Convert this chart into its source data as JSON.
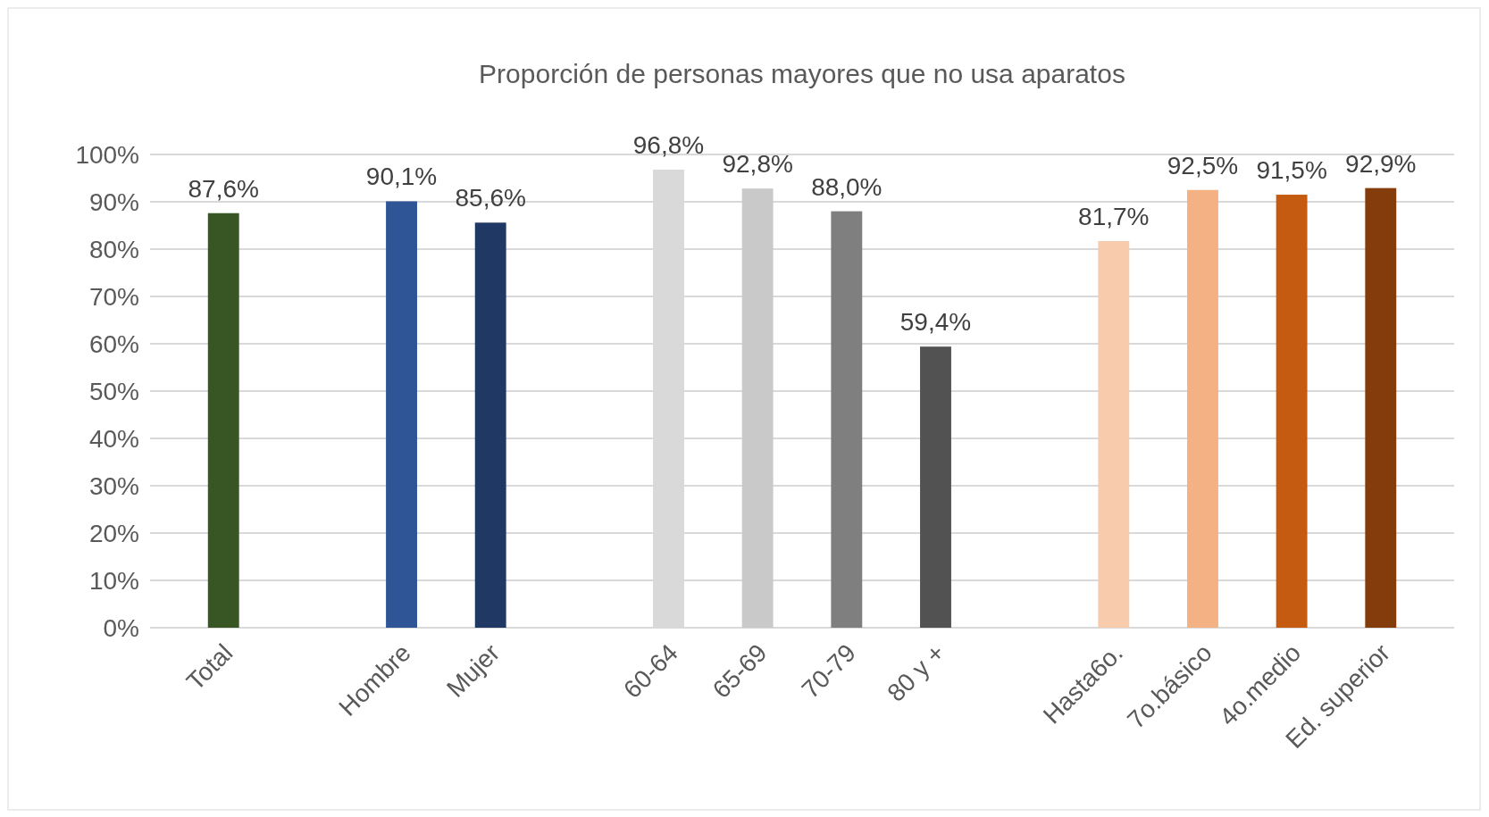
{
  "chart_data": {
    "type": "bar",
    "title": "Proporción  de personas mayores que no usa aparatos",
    "categories": [
      "Total",
      null,
      "Hombre",
      "Mujer",
      null,
      "60-64",
      "65-69",
      "70-79",
      "80 y +",
      null,
      "Hasta6o.",
      "7o.básico",
      "4o.medio",
      "Ed. superior"
    ],
    "values": [
      87.6,
      null,
      90.1,
      85.6,
      null,
      96.8,
      92.8,
      88.0,
      59.4,
      null,
      81.7,
      92.5,
      91.5,
      92.9
    ],
    "value_labels": [
      "87,6%",
      null,
      "90,1%",
      "85,6%",
      null,
      "96,8%",
      "92,8%",
      "88,0%",
      "59,4%",
      null,
      "81,7%",
      "92,5%",
      "91,5%",
      "92,9%"
    ],
    "colors": [
      "#375623",
      null,
      "#2f5597",
      "#203864",
      null,
      "#d9d9d9",
      "#c9c9c9",
      "#7f7f7f",
      "#525252",
      null,
      "#f8cbad",
      "#f4b183",
      "#c55a11",
      "#843c0c"
    ],
    "ylim": [
      0,
      100
    ],
    "yticks": [
      {
        "value": 0,
        "label": "0%"
      },
      {
        "value": 10,
        "label": "10%"
      },
      {
        "value": 20,
        "label": "20%"
      },
      {
        "value": 30,
        "label": "30%"
      },
      {
        "value": 40,
        "label": "40%"
      },
      {
        "value": 50,
        "label": "50%"
      },
      {
        "value": 60,
        "label": "60%"
      },
      {
        "value": 70,
        "label": "70%"
      },
      {
        "value": 80,
        "label": "80%"
      },
      {
        "value": 90,
        "label": "90%"
      },
      {
        "value": 100,
        "label": "100%"
      }
    ],
    "grid": "y"
  }
}
